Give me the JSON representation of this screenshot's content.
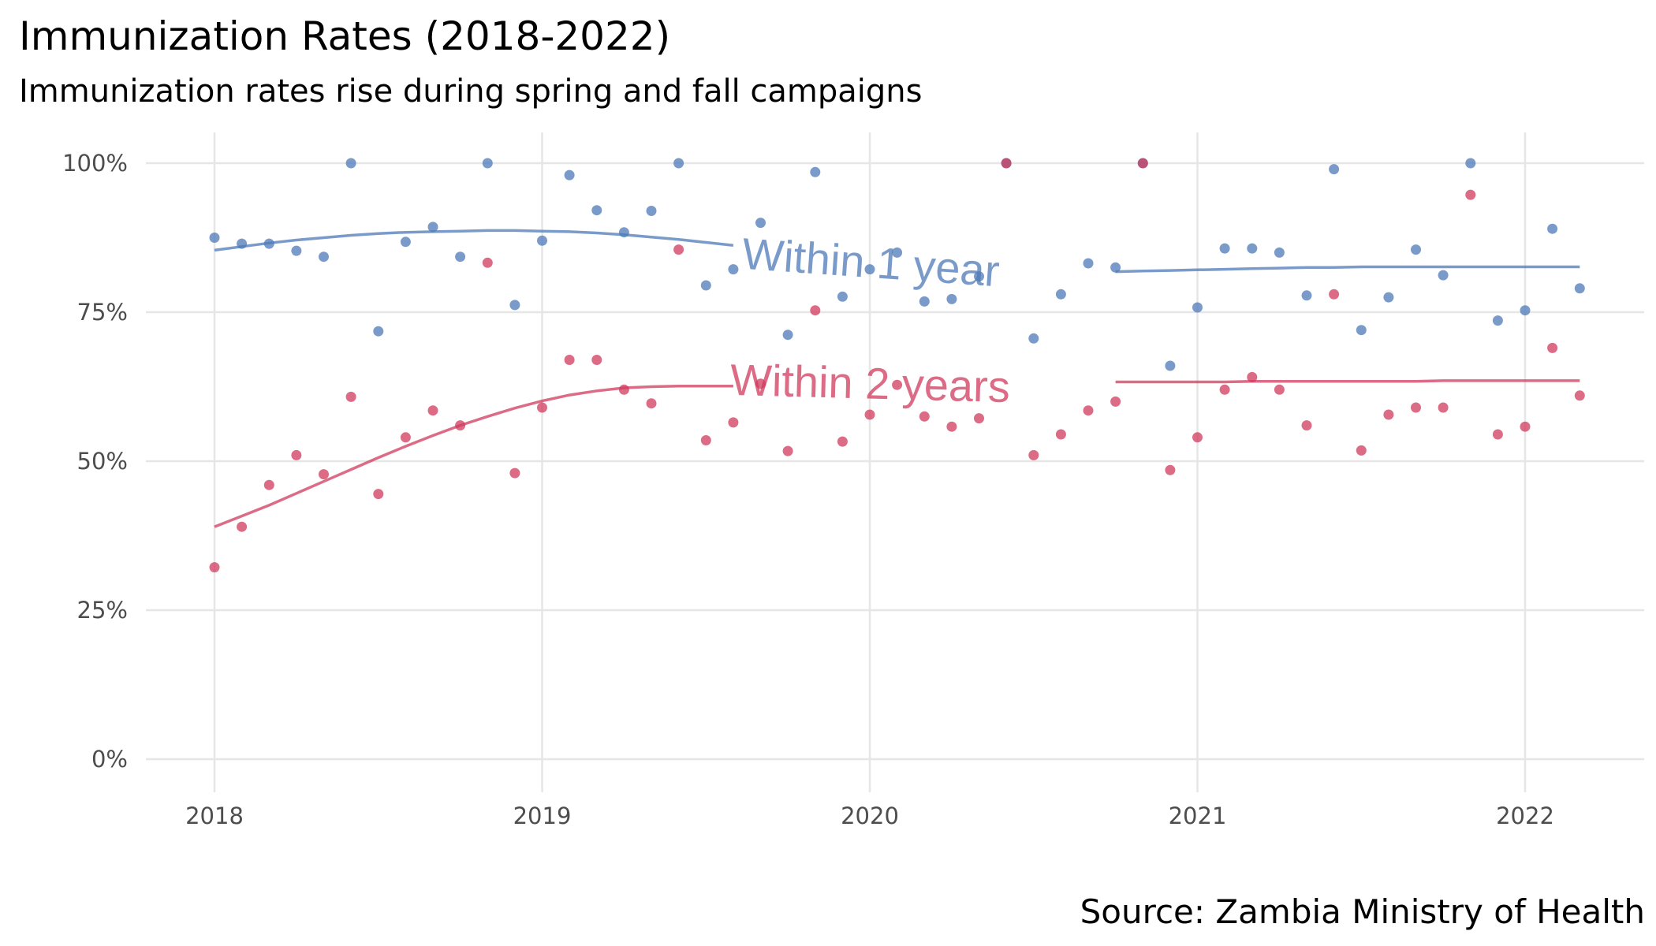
{
  "chart_data": {
    "type": "scatter",
    "title": "Immunization Rates (2018-2022)",
    "subtitle": "Immunization rates rise during spring and fall campaigns",
    "caption": "Source: Zambia Ministry of Health",
    "xlabel": "",
    "ylabel": "",
    "x_ticks": [
      "2018",
      "2019",
      "2020",
      "2021",
      "2022"
    ],
    "y_ticks": [
      "0%",
      "25%",
      "50%",
      "75%",
      "100%"
    ],
    "xlim": [
      "2017-10",
      "2022-07"
    ],
    "ylim": [
      0,
      1.05
    ],
    "grid": true,
    "legend": "none (direct labels on trend lines)",
    "x": [
      "2018-01",
      "2018-02",
      "2018-03",
      "2018-04",
      "2018-05",
      "2018-06",
      "2018-07",
      "2018-08",
      "2018-09",
      "2018-10",
      "2018-11",
      "2018-12",
      "2019-01",
      "2019-02",
      "2019-03",
      "2019-04",
      "2019-05",
      "2019-06",
      "2019-07",
      "2019-08",
      "2019-09",
      "2019-10",
      "2019-11",
      "2019-12",
      "2020-01",
      "2020-02",
      "2020-03",
      "2020-04",
      "2020-05",
      "2020-06",
      "2020-07",
      "2020-08",
      "2020-09",
      "2020-10",
      "2020-11",
      "2020-12",
      "2021-01",
      "2021-02",
      "2021-03",
      "2021-04",
      "2021-05",
      "2021-06",
      "2021-07",
      "2021-08",
      "2021-09",
      "2021-10",
      "2021-11",
      "2021-12",
      "2022-01",
      "2022-02",
      "2022-03"
    ],
    "series": [
      {
        "name": "Within 1 year",
        "color": "#4e79b7",
        "values": [
          0.875,
          0.865,
          0.865,
          0.853,
          0.843,
          1.0,
          0.718,
          0.868,
          0.893,
          0.843,
          1.0,
          0.762,
          0.87,
          0.98,
          0.921,
          0.884,
          0.92,
          1.0,
          0.795,
          0.822,
          0.9,
          0.712,
          0.985,
          0.776,
          0.822,
          0.85,
          0.768,
          0.772,
          0.81,
          1.0,
          0.706,
          0.78,
          0.832,
          0.825,
          1.0,
          0.66,
          0.758,
          0.857,
          0.857,
          0.85,
          0.778,
          0.99,
          0.72,
          0.775,
          0.855,
          0.812,
          1.0,
          0.736,
          0.753,
          0.89,
          0.79
        ],
        "trend": [
          0.854,
          0.86,
          0.866,
          0.871,
          0.875,
          0.879,
          0.882,
          0.884,
          0.885,
          0.886,
          0.887,
          0.887,
          0.886,
          0.885,
          0.883,
          0.88,
          0.876,
          0.872,
          0.867,
          0.862,
          0.856,
          0.85,
          0.844,
          0.838,
          0.832,
          0.828,
          0.825,
          0.822,
          0.82,
          0.818,
          0.818,
          0.818,
          0.818,
          0.818,
          0.819,
          0.82,
          0.821,
          0.822,
          0.823,
          0.824,
          0.825,
          0.825,
          0.826,
          0.826,
          0.826,
          0.826,
          0.826,
          0.826,
          0.826,
          0.826,
          0.826
        ]
      },
      {
        "name": "Within 2 years",
        "color": "#d03a5c",
        "values": [
          0.322,
          0.39,
          0.46,
          0.51,
          0.478,
          0.608,
          0.445,
          0.54,
          0.585,
          0.56,
          0.833,
          0.48,
          0.59,
          0.67,
          0.67,
          0.62,
          0.597,
          0.855,
          0.535,
          0.565,
          0.63,
          0.517,
          0.753,
          0.533,
          0.578,
          0.628,
          0.575,
          0.558,
          0.572,
          1.0,
          0.51,
          0.545,
          0.585,
          0.6,
          1.0,
          0.485,
          0.54,
          0.62,
          0.641,
          0.62,
          0.56,
          0.78,
          0.518,
          0.578,
          0.59,
          0.59,
          0.947,
          0.545,
          0.558,
          0.69,
          0.61
        ],
        "trend": [
          0.39,
          0.408,
          0.426,
          0.446,
          0.466,
          0.486,
          0.506,
          0.525,
          0.543,
          0.56,
          0.575,
          0.589,
          0.601,
          0.611,
          0.618,
          0.623,
          0.625,
          0.626,
          0.626,
          0.626,
          0.626,
          0.626,
          0.627,
          0.628,
          0.629,
          0.63,
          0.631,
          0.631,
          0.632,
          0.632,
          0.632,
          0.632,
          0.632,
          0.633,
          0.633,
          0.633,
          0.633,
          0.633,
          0.634,
          0.634,
          0.634,
          0.634,
          0.634,
          0.634,
          0.634,
          0.635,
          0.635,
          0.635,
          0.635,
          0.635,
          0.635
        ]
      }
    ]
  }
}
